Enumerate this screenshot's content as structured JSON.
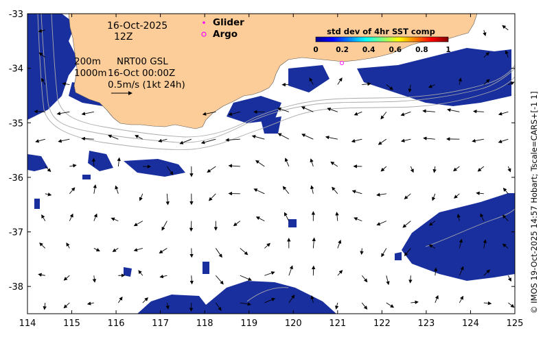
{
  "title": {
    "date": "16-Oct-2025",
    "hour": "12Z"
  },
  "legend": {
    "glider_label": "Glider",
    "argo_label": "Argo",
    "glider_color": "#ff00ff",
    "argo_color": "#ff00ff"
  },
  "colorbar": {
    "title": "std dev of 4hr SST comp",
    "ticks": [
      "0",
      "0.2",
      "0.4",
      "0.6",
      "0.8",
      "1"
    ],
    "range": [
      0,
      1
    ],
    "colormap": "jet"
  },
  "isobaths": {
    "label1": "200m",
    "label2": "1000m"
  },
  "currents": {
    "product": "NRT00 GSL",
    "time": "16-Oct 00:00Z",
    "scale_label": "0.5m/s (1kt 24h)"
  },
  "axes": {
    "xlim": [
      114,
      125
    ],
    "ylim": [
      -38.5,
      -33
    ],
    "x_ticks": [
      "114",
      "115",
      "116",
      "117",
      "118",
      "119",
      "120",
      "121",
      "122",
      "123",
      "124",
      "125"
    ],
    "y_ticks": [
      "-33",
      "-34",
      "-35",
      "-36",
      "-37",
      "-38"
    ]
  },
  "side_text": "© IMOS 19-Oct-2025 14:57 Hobart; Tscale=CARS+[-1 1]",
  "colors": {
    "land": "#fccc99",
    "ocean": "#ffffff",
    "sst_dev_main": "#1a2f9e",
    "contour": "#aaaaaa"
  }
}
